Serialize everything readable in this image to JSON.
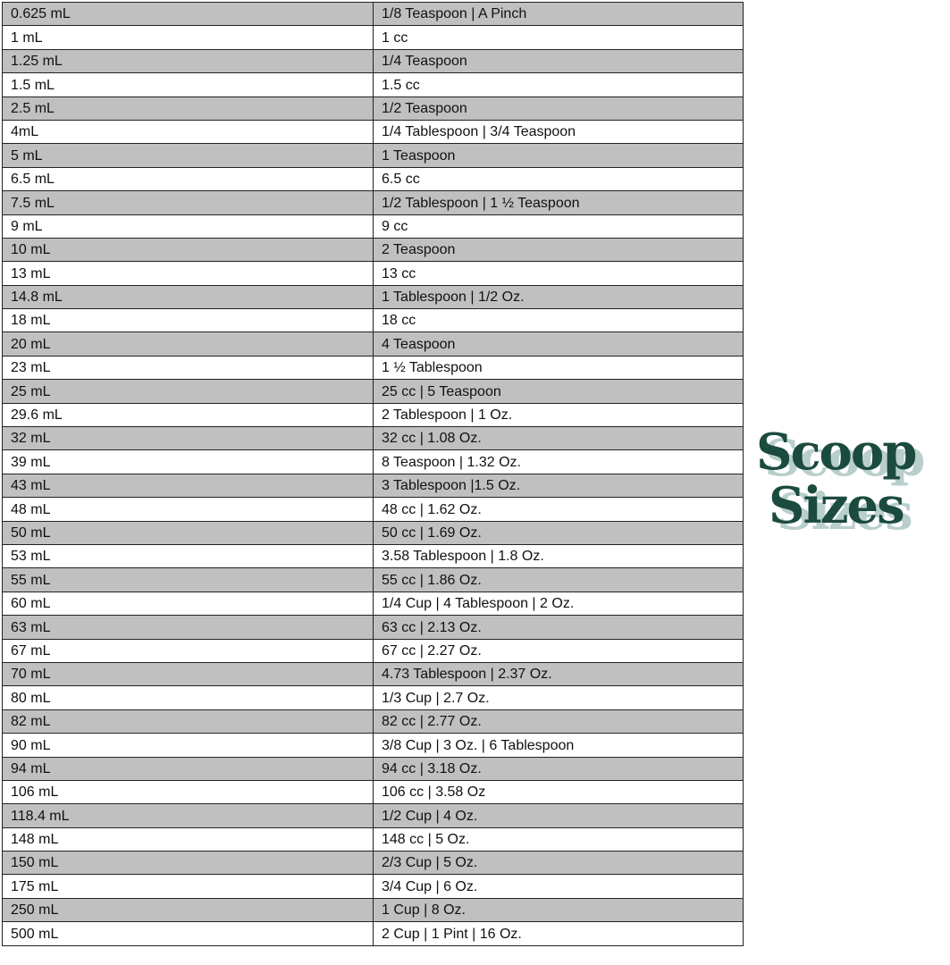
{
  "logo": {
    "line1": "Scoop",
    "line2": "Sizes",
    "color": "#1b4a3e",
    "shadow_color": "#b9cfcc"
  },
  "table": {
    "stripe_color": "#c0c0c0",
    "rows": [
      [
        "0.625 mL",
        "1/8 Teaspoon | A Pinch"
      ],
      [
        "1 mL",
        "1 cc"
      ],
      [
        "1.25 mL",
        "1/4 Teaspoon"
      ],
      [
        "1.5 mL",
        "1.5 cc"
      ],
      [
        "2.5 mL",
        "1/2 Teaspoon"
      ],
      [
        "4mL",
        "1/4 Tablespoon | 3/4 Teaspoon"
      ],
      [
        "5 mL",
        "1 Teaspoon"
      ],
      [
        "6.5 mL",
        "6.5 cc"
      ],
      [
        "7.5 mL",
        "1/2 Tablespoon | 1 ½ Teaspoon"
      ],
      [
        "9 mL",
        "9 cc"
      ],
      [
        "10 mL",
        "2 Teaspoon"
      ],
      [
        "13 mL",
        "13 cc"
      ],
      [
        "14.8 mL",
        "1 Tablespoon | 1/2 Oz."
      ],
      [
        "18 mL",
        "18 cc"
      ],
      [
        "20 mL",
        "4 Teaspoon"
      ],
      [
        "23 mL",
        "1 ½ Tablespoon"
      ],
      [
        "25 mL",
        "25 cc | 5 Teaspoon"
      ],
      [
        "29.6 mL",
        "2 Tablespoon | 1 Oz."
      ],
      [
        "32 mL",
        "32 cc | 1.08 Oz."
      ],
      [
        "39 mL",
        "8 Teaspoon | 1.32 Oz."
      ],
      [
        "43 mL",
        "3 Tablespoon |1.5 Oz."
      ],
      [
        "48 mL",
        "48 cc | 1.62 Oz."
      ],
      [
        "50 mL",
        "50 cc | 1.69 Oz."
      ],
      [
        "53 mL",
        "3.58 Tablespoon | 1.8 Oz."
      ],
      [
        "55 mL",
        "55 cc | 1.86 Oz."
      ],
      [
        "60 mL",
        "1/4 Cup | 4 Tablespoon | 2 Oz."
      ],
      [
        "63 mL",
        "63 cc | 2.13 Oz."
      ],
      [
        "67 mL",
        "67 cc | 2.27 Oz."
      ],
      [
        "70 mL",
        "4.73 Tablespoon | 2.37 Oz."
      ],
      [
        "80 mL",
        "1/3 Cup | 2.7 Oz."
      ],
      [
        "82 mL",
        "82 cc | 2.77 Oz."
      ],
      [
        "90 mL",
        "3/8 Cup | 3 Oz. | 6 Tablespoon"
      ],
      [
        "94 mL",
        "94 cc | 3.18 Oz."
      ],
      [
        "106 mL",
        "106 cc | 3.58 Oz"
      ],
      [
        "118.4 mL",
        "1/2 Cup | 4 Oz."
      ],
      [
        "148 mL",
        "148 cc | 5 Oz."
      ],
      [
        "150 mL",
        "2/3 Cup | 5 Oz."
      ],
      [
        "175 mL",
        "3/4 Cup | 6 Oz."
      ],
      [
        "250 mL",
        "1 Cup | 8 Oz."
      ],
      [
        "500 mL",
        "2 Cup | 1 Pint | 16 Oz."
      ]
    ]
  }
}
